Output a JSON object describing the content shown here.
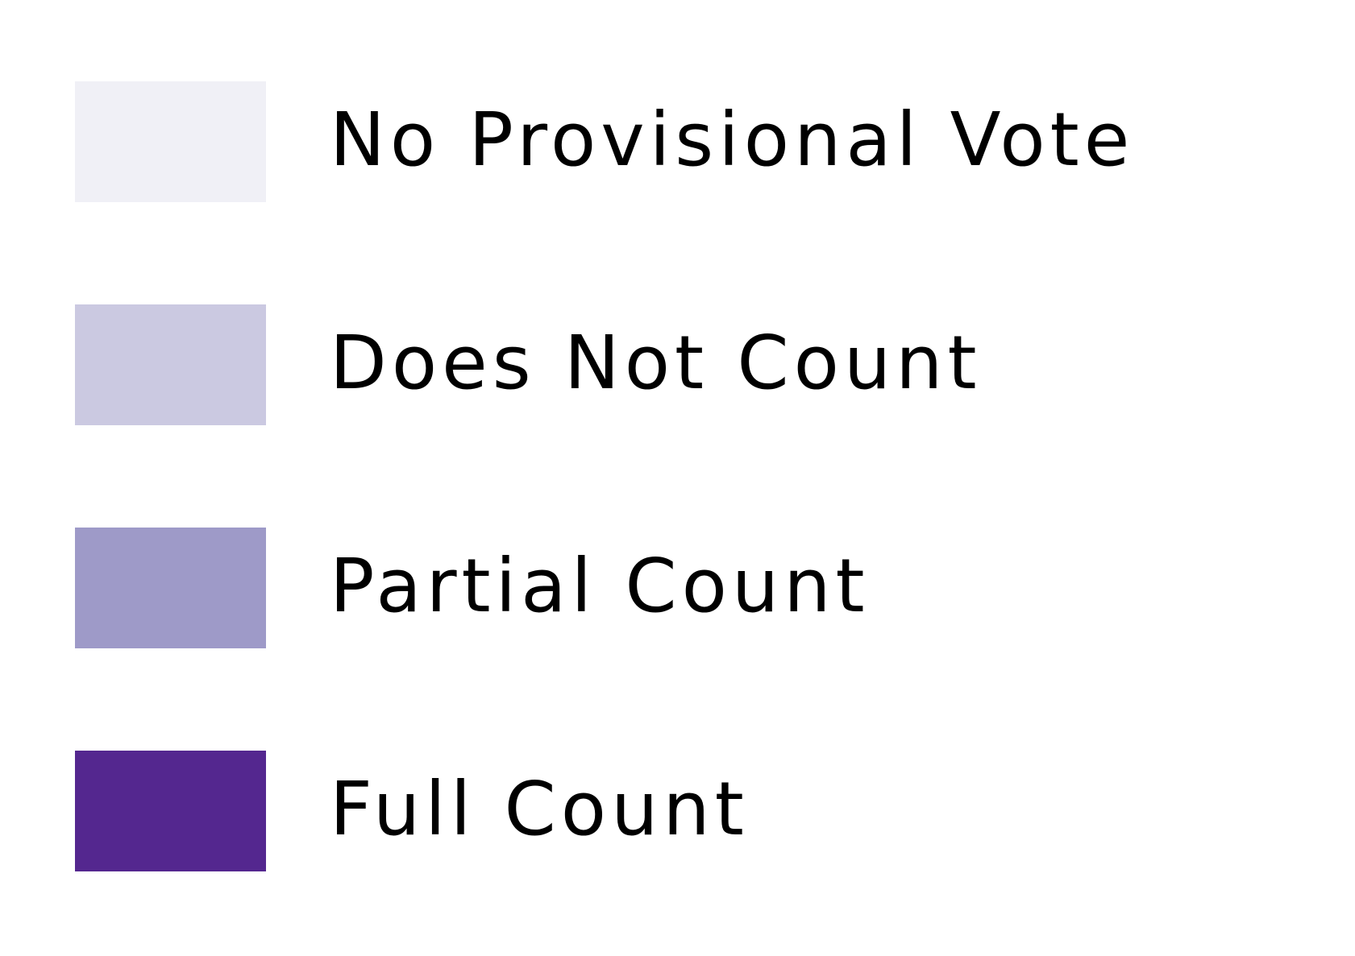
{
  "legend": {
    "items": [
      {
        "label": "No Provisional Vote",
        "color": "#f0f0f6"
      },
      {
        "label": "Does Not Count",
        "color": "#cbc9e1"
      },
      {
        "label": "Partial Count",
        "color": "#9e9ac8"
      },
      {
        "label": "Full Count",
        "color": "#54278f"
      }
    ]
  }
}
